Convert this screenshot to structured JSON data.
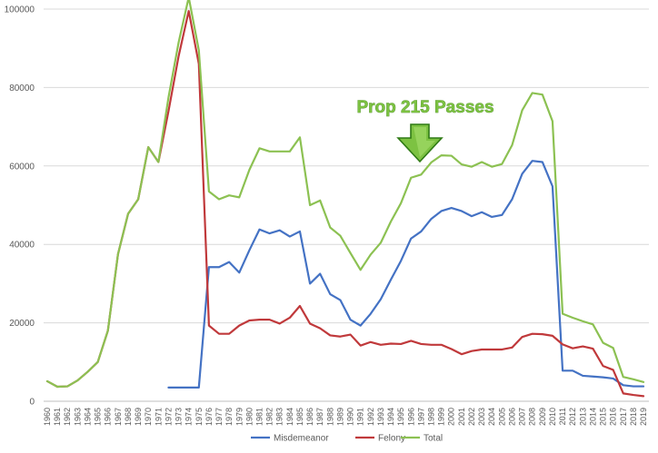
{
  "chart_data": {
    "type": "line",
    "x": [
      1960,
      1961,
      1962,
      1963,
      1964,
      1965,
      1966,
      1967,
      1968,
      1969,
      1970,
      1971,
      1972,
      1973,
      1974,
      1975,
      1976,
      1977,
      1978,
      1979,
      1980,
      1981,
      1982,
      1983,
      1984,
      1985,
      1986,
      1987,
      1988,
      1989,
      1990,
      1991,
      1992,
      1993,
      1994,
      1995,
      1996,
      1997,
      1998,
      1999,
      2000,
      2001,
      2002,
      2003,
      2004,
      2005,
      2006,
      2007,
      2008,
      2009,
      2010,
      2011,
      2012,
      2013,
      2014,
      2015,
      2016,
      2017,
      2018,
      2019
    ],
    "ylim": [
      0,
      100000
    ],
    "yticks": [
      0,
      20000,
      40000,
      60000,
      80000,
      100000
    ],
    "grid": true,
    "legend_position": "bottom",
    "series": [
      {
        "name": "Misdemeanor",
        "color": "#4472c4",
        "values": [
          null,
          null,
          null,
          null,
          null,
          null,
          null,
          null,
          null,
          null,
          null,
          null,
          3500,
          3500,
          3500,
          3500,
          34200,
          34200,
          35500,
          32800,
          38500,
          43800,
          42800,
          43600,
          42000,
          43300,
          30000,
          32500,
          27300,
          25800,
          20800,
          19300,
          22300,
          26000,
          31000,
          35800,
          41500,
          43300,
          46500,
          48500,
          49300,
          48500,
          47200,
          48200,
          47000,
          47500,
          51500,
          58000,
          61300,
          61000,
          54800,
          7800,
          7800,
          6500,
          6300,
          6100,
          5800,
          4100,
          3800,
          3800
        ]
      },
      {
        "name": "Felony",
        "color": "#c0393b",
        "values": [
          5100,
          3700,
          3800,
          5300,
          7500,
          10000,
          18000,
          37500,
          47800,
          51500,
          64800,
          61000,
          74000,
          88000,
          99500,
          86000,
          19300,
          17200,
          17200,
          19300,
          20600,
          20800,
          20800,
          19800,
          21300,
          24300,
          19800,
          18600,
          16800,
          16500,
          17000,
          14200,
          15100,
          14400,
          14700,
          14600,
          15400,
          14600,
          14400,
          14400,
          13300,
          12000,
          12800,
          13200,
          13200,
          13200,
          13700,
          16400,
          17200,
          17100,
          16700,
          14500,
          13500,
          14000,
          13400,
          9000,
          8000,
          2000,
          1600,
          1300
        ]
      },
      {
        "name": "Total",
        "color": "#8cc152",
        "values": [
          5100,
          3700,
          3800,
          5300,
          7500,
          10000,
          18000,
          37500,
          47800,
          51500,
          64800,
          61000,
          77500,
          91500,
          103000,
          89500,
          53500,
          51500,
          52500,
          52000,
          59000,
          64500,
          63700,
          63700,
          63700,
          67300,
          50000,
          51200,
          44300,
          42200,
          37800,
          33500,
          37400,
          40400,
          45800,
          50500,
          57000,
          57800,
          60900,
          62700,
          62600,
          60400,
          59800,
          61000,
          59800,
          60500,
          65300,
          74200,
          78600,
          78200,
          71400,
          22300,
          21300,
          20400,
          19600,
          14900,
          13600,
          6200,
          5600,
          4900
        ]
      }
    ],
    "annotation": {
      "text": "Prop 215 Passes",
      "color": "#7dc242"
    }
  }
}
